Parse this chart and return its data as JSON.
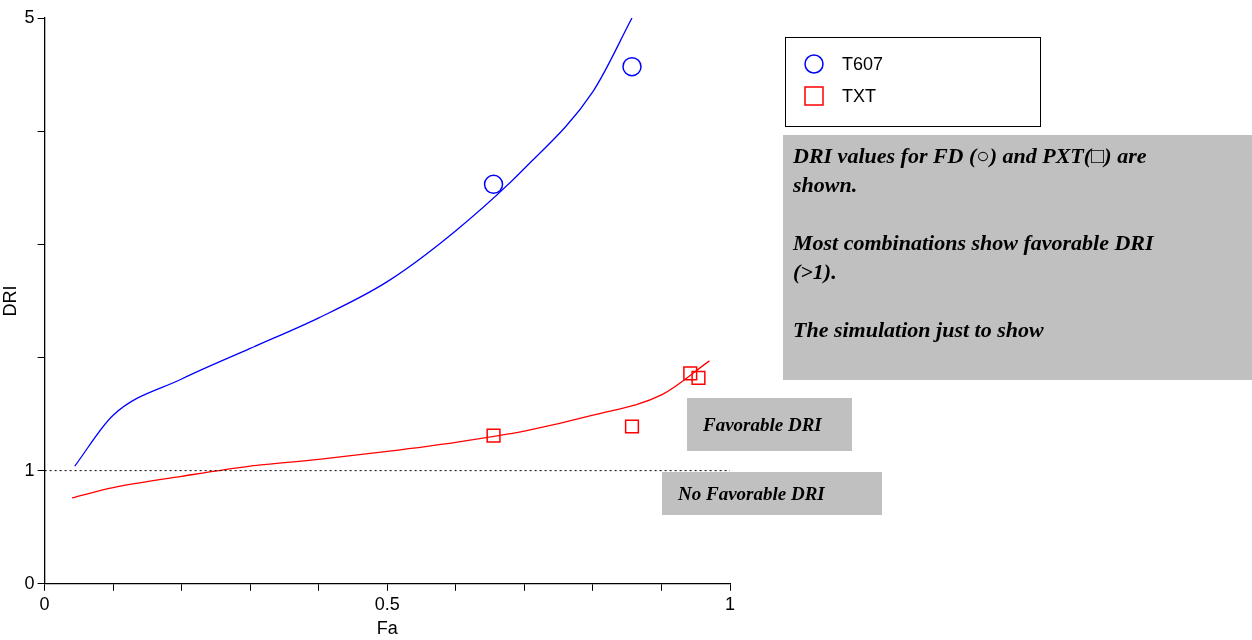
{
  "chart_data": {
    "type": "scatter",
    "xlabel": "Fa",
    "ylabel": "DRI",
    "xlim": [
      0,
      1
    ],
    "ylim": [
      0,
      5
    ],
    "xticks": [
      0,
      {
        "value": 0.1,
        "label": null
      },
      {
        "value": 0.2,
        "label": null
      },
      {
        "value": 0.3,
        "label": null
      },
      {
        "value": 0.4,
        "label": null
      },
      0.5,
      {
        "value": 0.6,
        "label": null
      },
      {
        "value": 0.7,
        "label": null
      },
      {
        "value": 0.8,
        "label": null
      },
      {
        "value": 0.9,
        "label": null
      },
      1
    ],
    "yticks": [
      0,
      1,
      {
        "value": 2,
        "label": null
      },
      {
        "value": 3,
        "label": null
      },
      {
        "value": 4,
        "label": null
      },
      5
    ],
    "grid": false,
    "legend": "top right",
    "series": [
      {
        "name": "T607",
        "marker": "circle",
        "color": "#0000ff",
        "x": [
          0.655,
          0.857
        ],
        "values": [
          3.53,
          4.57
        ]
      },
      {
        "name": "TXT",
        "marker": "square",
        "color": "#ff0000",
        "x": [
          0.655,
          0.857,
          0.942,
          0.954
        ],
        "values": [
          1.31,
          1.39,
          1.86,
          1.82
        ]
      },
      {
        "type": "line",
        "marker": "none",
        "color": "#0000ff",
        "x": [
          0.044,
          0.1,
          0.2,
          0.3,
          0.4,
          0.5,
          0.6,
          0.7,
          0.8,
          0.857
        ],
        "values": [
          1.04,
          1.49,
          1.81,
          2.08,
          2.35,
          2.67,
          3.12,
          3.67,
          4.35,
          5
        ]
      },
      {
        "type": "line",
        "marker": "none",
        "color": "#ff0000",
        "x": [
          0.04,
          0.1,
          0.2,
          0.3,
          0.4,
          0.5,
          0.6,
          0.7,
          0.8,
          0.9,
          0.97
        ],
        "values": [
          0.76,
          0.85,
          0.95,
          1.04,
          1.1,
          1.17,
          1.25,
          1.35,
          1.49,
          1.67,
          1.97
        ]
      }
    ],
    "ref_lines": [
      {
        "axis": "y",
        "value": 1,
        "color": "#000000",
        "line_style": "dotted"
      }
    ],
    "annotations": [
      "DRI values for FD (○) and PXT(□) are shown.",
      "Most combinations show favorable DRI (>1).",
      "The simulation just to show",
      "Favorable DRI",
      "No Favorable DRI"
    ]
  }
}
